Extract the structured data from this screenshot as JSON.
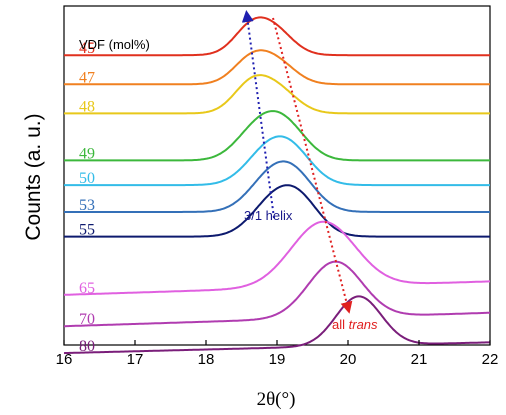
{
  "chart_data": {
    "type": "line",
    "xlabel": "2θ(°)",
    "ylabel": "Counts (a. u.)",
    "xlim": [
      16,
      22
    ],
    "x_ticks": [
      "16",
      "17",
      "18",
      "19",
      "20",
      "21",
      "22"
    ],
    "y_ticks_shown": false,
    "legend_title": "VDF (mol%)",
    "series": [
      {
        "name": "45",
        "color": "#e0301e",
        "baseline": 11.6,
        "peaks": [
          {
            "x": 18.62,
            "h": 1.1,
            "w": 0.24
          },
          {
            "x": 18.97,
            "h": 1.05,
            "w": 0.26
          }
        ],
        "slope": 0.0
      },
      {
        "name": "47",
        "color": "#f08020",
        "baseline": 10.3,
        "peaks": [
          {
            "x": 18.62,
            "h": 1.0,
            "w": 0.25
          },
          {
            "x": 18.99,
            "h": 0.95,
            "w": 0.27
          }
        ],
        "slope": 0.0
      },
      {
        "name": "48",
        "color": "#e8c81a",
        "baseline": 9.0,
        "peaks": [
          {
            "x": 18.62,
            "h": 1.15,
            "w": 0.25
          },
          {
            "x": 19.0,
            "h": 1.05,
            "w": 0.28
          }
        ],
        "slope": 0.0
      },
      {
        "name": "49",
        "color": "#3cb83c",
        "baseline": 6.9,
        "peaks": [
          {
            "x": 18.72,
            "h": 1.3,
            "w": 0.3
          },
          {
            "x": 19.12,
            "h": 1.45,
            "w": 0.3
          }
        ],
        "slope": 0.0
      },
      {
        "name": "50",
        "color": "#33bce8",
        "baseline": 5.8,
        "peaks": [
          {
            "x": 18.82,
            "h": 1.2,
            "w": 0.3
          },
          {
            "x": 19.2,
            "h": 1.45,
            "w": 0.3
          }
        ],
        "slope": 0.0
      },
      {
        "name": "53",
        "color": "#3470b8",
        "baseline": 4.6,
        "peaks": [
          {
            "x": 18.87,
            "h": 1.25,
            "w": 0.3
          },
          {
            "x": 19.25,
            "h": 1.5,
            "w": 0.3
          }
        ],
        "slope": 0.0
      },
      {
        "name": "55",
        "color": "#0d1a6e",
        "baseline": 3.5,
        "peaks": [
          {
            "x": 18.9,
            "h": 1.25,
            "w": 0.3
          },
          {
            "x": 19.3,
            "h": 1.6,
            "w": 0.3
          }
        ],
        "slope": 0.0
      },
      {
        "name": "65",
        "color": "#e060e0",
        "baseline": 0.9,
        "peaks": [
          {
            "x": 19.65,
            "h": 2.9,
            "w": 0.45
          }
        ],
        "slope": 0.1
      },
      {
        "name": "70",
        "color": "#b03cb0",
        "baseline": -0.5,
        "peaks": [
          {
            "x": 19.82,
            "h": 2.5,
            "w": 0.38
          }
        ],
        "slope": 0.1
      },
      {
        "name": "80",
        "color": "#7a1e7a",
        "baseline": -1.7,
        "peaks": [
          {
            "x": 20.15,
            "h": 2.2,
            "w": 0.32
          }
        ],
        "slope": 0.08
      }
    ],
    "annotations": [
      {
        "text": "3/1 helix",
        "color": "#1a1a8c"
      },
      {
        "text_prefix": "all ",
        "text_italic": "trans",
        "color": "#e02020"
      }
    ]
  }
}
